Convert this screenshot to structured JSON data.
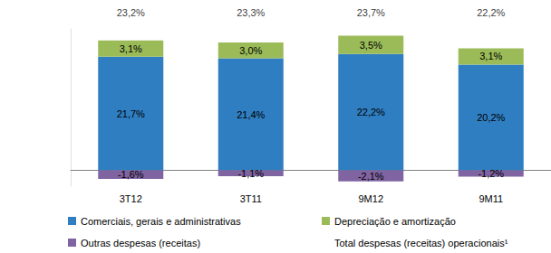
{
  "chart_data": {
    "type": "bar",
    "stacked": true,
    "data_labels": true,
    "tick_labels": "x",
    "legend": "bottom",
    "categories": [
      "3T12",
      "3T11",
      "9M12",
      "9M11"
    ],
    "ylim": [
      -3,
      27
    ],
    "series": [
      {
        "name": "Comerciais, gerais e administrativas",
        "color": "#2F7EC1",
        "values": [
          21.7,
          21.4,
          22.2,
          20.2
        ],
        "value_labels": [
          "21,7%",
          "21,4%",
          "22,2%",
          "20,2%"
        ]
      },
      {
        "name": "Depreciação e amortização",
        "color": "#9BBB59",
        "values": [
          3.1,
          3.0,
          3.5,
          3.1
        ],
        "value_labels": [
          "3,1%",
          "3,0%",
          "3,5%",
          "3,1%"
        ]
      },
      {
        "name": "Outras despesas (receitas)",
        "color": "#8064A2",
        "values": [
          -1.6,
          -1.1,
          -2.1,
          -1.2
        ],
        "value_labels": [
          "-1,6%",
          "-1,1%",
          "-2,1%",
          "-1,2%"
        ]
      },
      {
        "name": "Total despesas (receitas) operacionais¹",
        "type": "scatter",
        "marker": "none",
        "color": "#000000",
        "values": [
          23.2,
          23.3,
          23.7,
          22.2
        ],
        "value_labels": [
          "23,2%",
          "23,3%",
          "23,7%",
          "22,2%"
        ]
      }
    ]
  }
}
